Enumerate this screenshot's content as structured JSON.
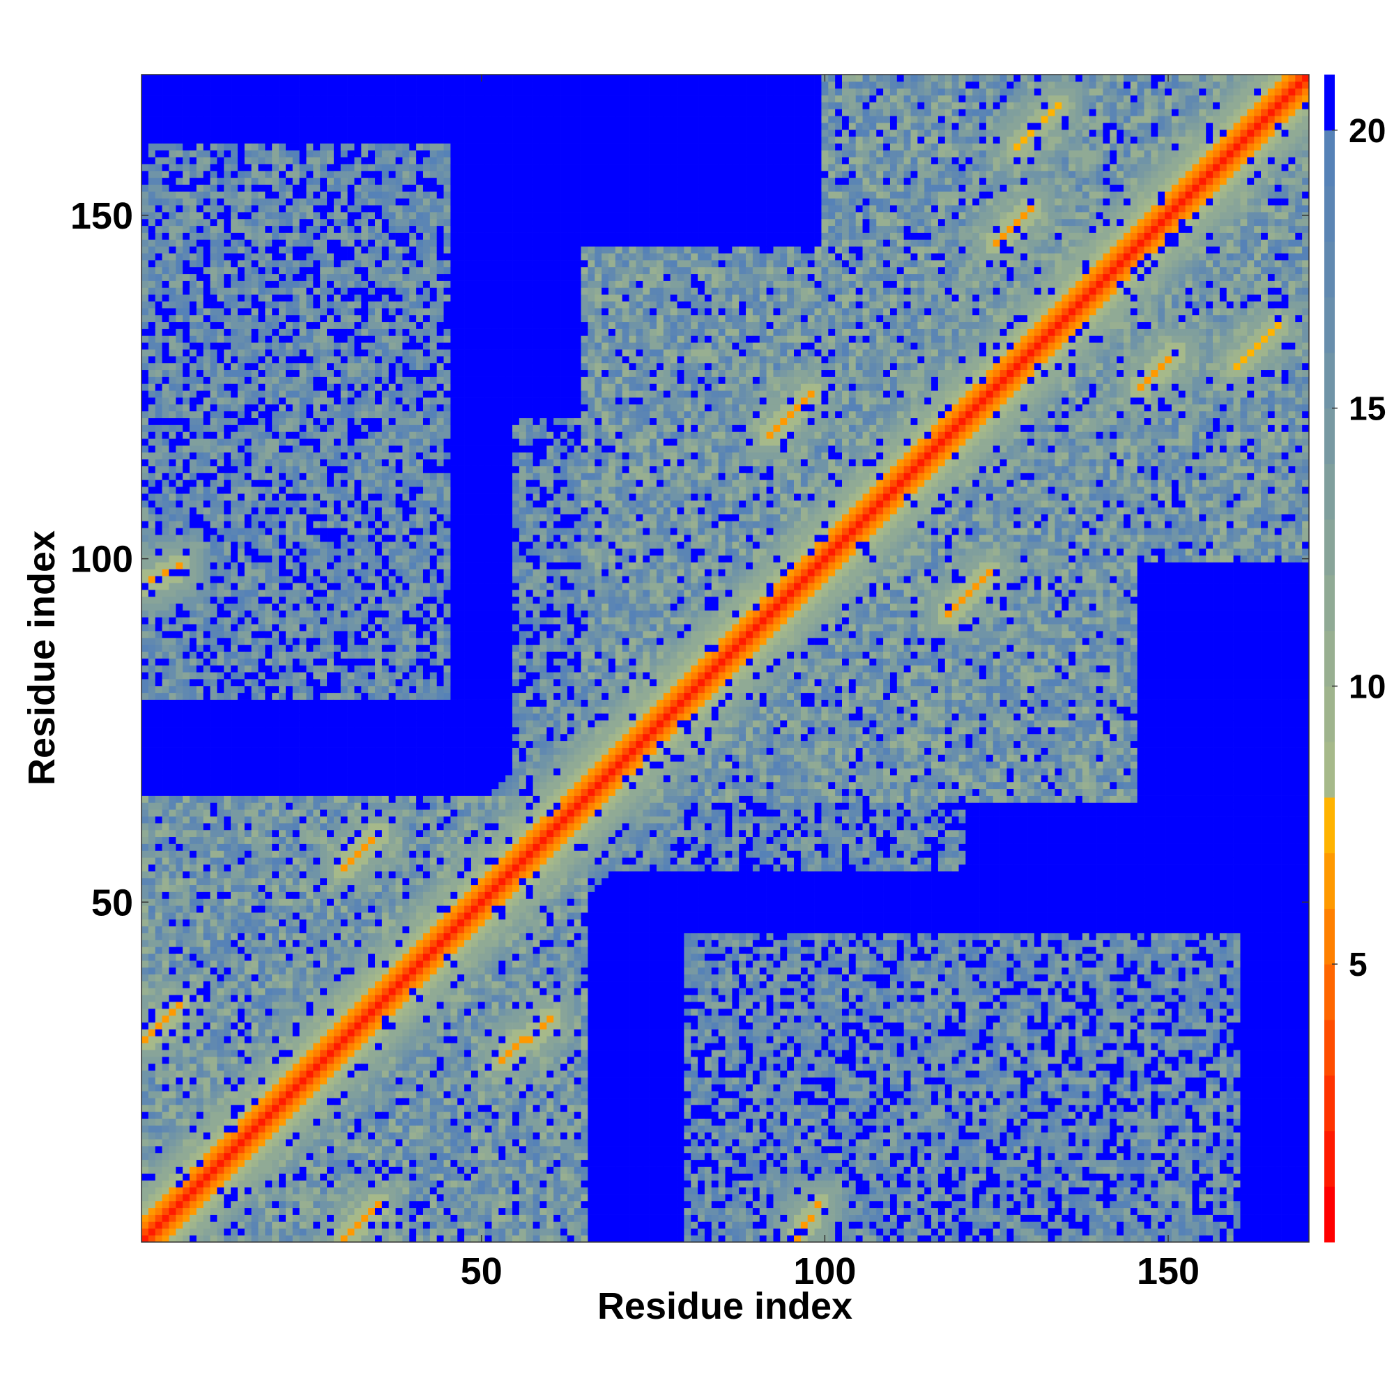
{
  "chart_data": {
    "type": "heatmap",
    "title": "",
    "xlabel": "Residue index",
    "ylabel": "Residue index",
    "n_residues": 170,
    "xlim": [
      0.5,
      170.5
    ],
    "ylim": [
      0.5,
      170.5
    ],
    "x_ticks": [
      50,
      100,
      150
    ],
    "y_ticks": [
      50,
      100,
      150
    ],
    "value_description": "pairwise residue distance; values above the top colour level shown in solid blue",
    "colorbar": {
      "ticks": [
        5,
        10,
        15,
        20
      ],
      "range": [
        0,
        21
      ],
      "levels": [
        {
          "min": 0,
          "max": 1,
          "color": "#ff0000"
        },
        {
          "min": 1,
          "max": 2,
          "color": "#ff1a00"
        },
        {
          "min": 2,
          "max": 3,
          "color": "#ff3300"
        },
        {
          "min": 3,
          "max": 4,
          "color": "#ff4d00"
        },
        {
          "min": 4,
          "max": 5,
          "color": "#ff6600"
        },
        {
          "min": 5,
          "max": 6,
          "color": "#ff8000"
        },
        {
          "min": 6,
          "max": 7,
          "color": "#ff9900"
        },
        {
          "min": 7,
          "max": 8,
          "color": "#ffb300"
        },
        {
          "min": 8,
          "max": 9,
          "color": "#a6b98a"
        },
        {
          "min": 9,
          "max": 10,
          "color": "#9fb48d"
        },
        {
          "min": 10,
          "max": 11,
          "color": "#98af91"
        },
        {
          "min": 11,
          "max": 12,
          "color": "#90aa95"
        },
        {
          "min": 12,
          "max": 13,
          "color": "#88a499"
        },
        {
          "min": 13,
          "max": 14,
          "color": "#809f9d"
        },
        {
          "min": 14,
          "max": 15,
          "color": "#7899a2"
        },
        {
          "min": 15,
          "max": 16,
          "color": "#7094a7"
        },
        {
          "min": 16,
          "max": 17,
          "color": "#688eac"
        },
        {
          "min": 17,
          "max": 18,
          "color": "#6189b0"
        },
        {
          "min": 18,
          "max": 19,
          "color": "#5b85b4"
        },
        {
          "min": 19,
          "max": 20,
          "color": "#5682b7"
        },
        {
          "min": 20,
          "max": 21,
          "color": "#0000ff"
        }
      ]
    },
    "main_diagonal": {
      "from": 1,
      "to": 170,
      "value": 1
    },
    "contact_bands": [
      {
        "x_from": 30,
        "y_from": 55,
        "x_to": 35,
        "y_to": 60,
        "value": 6
      },
      {
        "x_from": 53,
        "y_from": 27,
        "x_to": 60,
        "y_to": 33,
        "value": 6
      },
      {
        "x_from": 92,
        "y_from": 118,
        "x_to": 98,
        "y_to": 124,
        "value": 6
      },
      {
        "x_from": 118,
        "y_from": 92,
        "x_to": 124,
        "y_to": 98,
        "value": 6
      },
      {
        "x_from": 125,
        "y_from": 146,
        "x_to": 130,
        "y_to": 151,
        "value": 6
      },
      {
        "x_from": 146,
        "y_from": 125,
        "x_to": 151,
        "y_to": 130,
        "value": 6
      },
      {
        "x_from": 1,
        "y_from": 30,
        "x_to": 6,
        "y_to": 35,
        "value": 6
      },
      {
        "x_from": 1,
        "y_from": 96,
        "x_to": 6,
        "y_to": 99,
        "value": 6
      },
      {
        "x_from": 96,
        "y_from": 1,
        "x_to": 99,
        "y_to": 6,
        "value": 6
      },
      {
        "x_from": 30,
        "y_from": 1,
        "x_to": 35,
        "y_to": 6,
        "value": 6
      },
      {
        "x_from": 128,
        "y_from": 160,
        "x_to": 134,
        "y_to": 166,
        "value": 7
      },
      {
        "x_from": 160,
        "y_from": 128,
        "x_to": 166,
        "y_to": 134,
        "value": 7
      }
    ],
    "domain_blocks": [
      {
        "x": [
          1,
          65
        ],
        "y": [
          1,
          65
        ],
        "value": 13
      },
      {
        "x": [
          65,
          145
        ],
        "y": [
          65,
          145
        ],
        "value": 13
      },
      {
        "x": [
          100,
          170
        ],
        "y": [
          100,
          170
        ],
        "value": 13
      },
      {
        "x": [
          1,
          45
        ],
        "y": [
          80,
          160
        ],
        "value": 15
      },
      {
        "x": [
          80,
          160
        ],
        "y": [
          1,
          45
        ],
        "value": 15
      },
      {
        "x": [
          55,
          95
        ],
        "y": [
          60,
          120
        ],
        "value": 15
      },
      {
        "x": [
          60,
          120
        ],
        "y": [
          55,
          95
        ],
        "value": 15
      }
    ]
  }
}
